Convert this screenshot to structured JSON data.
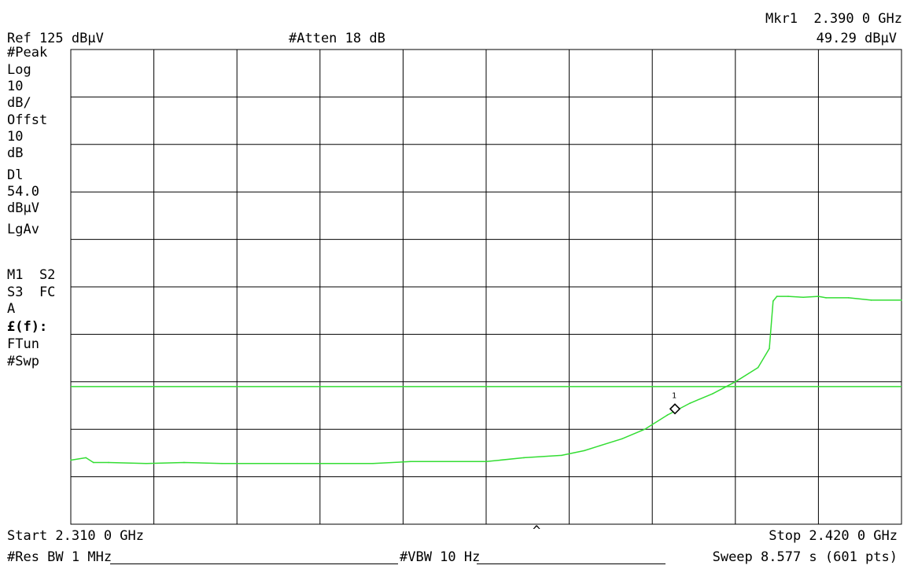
{
  "header": {
    "ref_level": "Ref 125 dBµV",
    "atten": "#Atten 18 dB",
    "marker_freq": "Mkr1  2.390 0 GHz",
    "marker_level": "49.29 dBµV"
  },
  "left_annotations": [
    "#Peak",
    "Log",
    "10",
    "dB/",
    "Offst",
    "10",
    "dB",
    "Dl",
    "54.0",
    "dBµV",
    "LgAv",
    "M1  S2",
    "S3  FC",
    "A",
    "£(f):",
    "FTun",
    "#Swp"
  ],
  "footer": {
    "start": "Start 2.310 0 GHz",
    "stop": "Stop 2.420 0 GHz",
    "caret": "^",
    "res_bw": "#Res BW 1 MHz",
    "vbw": "#VBW 10 Hz",
    "sweep": "Sweep 8.577 s (601 pts)"
  },
  "marker": {
    "label": "1"
  },
  "colors": {
    "trace": "#33dd33",
    "display_line": "#33dd33",
    "grid": "#000000",
    "background": "#ffffff"
  },
  "chart_data": {
    "type": "line",
    "xlabel": "",
    "ylabel": "",
    "x_unit": "GHz",
    "y_unit": "dBµV",
    "xlim": [
      2.31,
      2.42
    ],
    "ylim": [
      25,
      125
    ],
    "grid": true,
    "y_scale": "log 10 dB/div",
    "display_line": 54.0,
    "marker": {
      "x": 2.39,
      "y": 49.29
    },
    "series": [
      {
        "x": [
          2.31,
          2.312,
          2.313,
          2.315,
          2.32,
          2.325,
          2.33,
          2.34,
          2.35,
          2.355,
          2.365,
          2.37,
          2.375,
          2.378,
          2.38,
          2.383,
          2.386,
          2.389,
          2.392,
          2.395,
          2.398,
          2.401,
          2.4025,
          2.403,
          2.4035,
          2.405,
          2.407,
          2.409,
          2.41,
          2.413,
          2.416,
          2.42
        ],
        "y": [
          38.5,
          39.0,
          38.0,
          38.0,
          37.8,
          38.0,
          37.8,
          37.8,
          37.8,
          38.2,
          38.2,
          39.0,
          39.5,
          40.5,
          41.5,
          43.0,
          45.0,
          48.0,
          50.5,
          52.5,
          55.0,
          58.0,
          62.0,
          72.0,
          73.0,
          73.0,
          72.8,
          73.0,
          72.7,
          72.7,
          72.2,
          72.2
        ]
      }
    ]
  }
}
